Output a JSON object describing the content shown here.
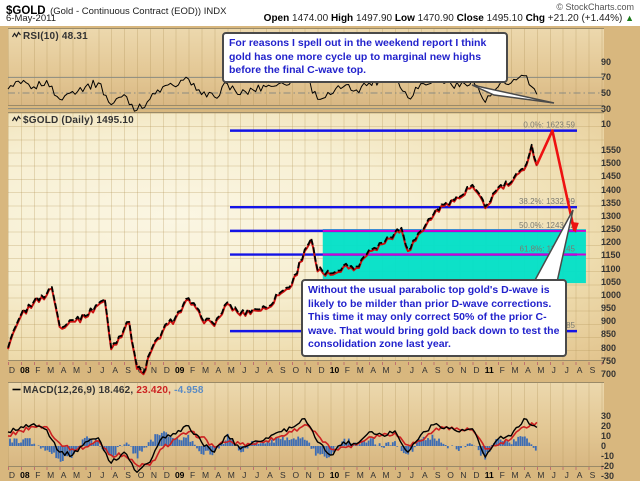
{
  "header": {
    "symbol": "$GOLD",
    "description": "(Gold - Continuous Contract (EOD)) INDX",
    "credit": "© StockCharts.com",
    "date": "6-May-2011",
    "quote": {
      "open_label": "Open",
      "open": "1474.00",
      "high_label": "High",
      "high": "1497.90",
      "low_label": "Low",
      "low": "1470.90",
      "close_label": "Close",
      "close": "1495.10",
      "chg_label": "Chg",
      "chg": "+21.20 (+1.44%)",
      "direction": "▲"
    }
  },
  "rsi_panel": {
    "label": "RSI(10) 48.31",
    "axis": [
      90,
      70,
      50,
      30,
      10
    ]
  },
  "main_panel": {
    "label": "$GOLD (Daily) 1495.10",
    "axis": [
      1550,
      1500,
      1450,
      1400,
      1350,
      1300,
      1250,
      1200,
      1150,
      1100,
      1050,
      1000,
      950,
      900,
      850,
      800,
      750,
      700
    ]
  },
  "macd_panel": {
    "label_black": "MACD(12,26,9) 18.462,",
    "label_red": "23.420,",
    "label_blue": "-4.958",
    "axis": [
      30,
      20,
      10,
      0,
      -10,
      -20,
      -30
    ]
  },
  "annotations": {
    "box1": "For reasons I spell out in the weekend report I think gold has one more cycle up to marginal new highs before the final C-wave top.",
    "box2": "Without the usual parabolic top gold's D-wave is likely to be milder than prior D-wave corrections. This time it may only correct 50% of the prior C-wave. That would bring gold back down to test the consolidation zone last year."
  },
  "colors": {
    "fib_blue": "#1414e6",
    "magenta": "#d400d4",
    "zone_cyan": "#00e0c8",
    "projection_red": "#ee1111",
    "price_black": "#000000",
    "price_red": "#cc1111",
    "macd_black": "#000000",
    "signal_red": "#cc2222",
    "histogram_blue": "#3c6cb4",
    "annotation_text": "#2222cc",
    "up_green": "#1a7a1a"
  },
  "chart_data": {
    "type": "line",
    "title": "$GOLD (Gold - Continuous Contract (EOD)) INDX - Daily",
    "x_unit": "months from Dec-2007",
    "x_axis_labels": [
      "D",
      "08",
      "F",
      "M",
      "A",
      "M",
      "J",
      "J",
      "A",
      "S",
      "O",
      "N",
      "D",
      "09",
      "F",
      "M",
      "A",
      "M",
      "J",
      "J",
      "A",
      "S",
      "O",
      "N",
      "D",
      "10",
      "F",
      "M",
      "A",
      "M",
      "J",
      "J",
      "A",
      "S",
      "O",
      "N",
      "D",
      "11",
      "F",
      "M",
      "A",
      "M",
      "J",
      "J",
      "A",
      "S"
    ],
    "bold_x_labels": [
      "08",
      "09",
      "10",
      "11"
    ],
    "price_ylim": [
      650,
      1600
    ],
    "rsi_ylim": [
      0,
      100
    ],
    "macd_ylim": [
      -35,
      35
    ],
    "fibonacci": [
      {
        "label": "0.0%: 1623.59",
        "value": 1623.59
      },
      {
        "label": "38.2%: 1332.99",
        "value": 1332.99
      },
      {
        "label": "50.0%: 1243.22",
        "value": 1243.22
      },
      {
        "label": "61.8%: 1153.45",
        "value": 1153.45
      },
      {
        "label": "100.0%: 862.85",
        "value": 862.85
      }
    ],
    "magenta_lines": [
      1243.22,
      1153.45
    ],
    "consolidation_zone": {
      "month_start": 24.4,
      "month_end": 44.8,
      "price_top": 1250,
      "price_bottom": 1045
    },
    "projection": {
      "points_month_price": [
        [
          41,
          1495
        ],
        [
          42.2,
          1623.59
        ],
        [
          43.9,
          1243
        ]
      ]
    },
    "series": [
      {
        "name": "gold_price",
        "points": [
          [
            0,
            800
          ],
          [
            1,
            925
          ],
          [
            2,
            975
          ],
          [
            3,
            1005
          ],
          [
            3.4,
            1030
          ],
          [
            4,
            885
          ],
          [
            5,
            905
          ],
          [
            6,
            920
          ],
          [
            7,
            968
          ],
          [
            7.5,
            985
          ],
          [
            8,
            800
          ],
          [
            9,
            872
          ],
          [
            9.4,
            898
          ],
          [
            10,
            725
          ],
          [
            10.5,
            705
          ],
          [
            11,
            780
          ],
          [
            12,
            868
          ],
          [
            13,
            918
          ],
          [
            14,
            988
          ],
          [
            15,
            915
          ],
          [
            16,
            888
          ],
          [
            17,
            972
          ],
          [
            18,
            928
          ],
          [
            19,
            948
          ],
          [
            20,
            952
          ],
          [
            21,
            1005
          ],
          [
            22,
            1042
          ],
          [
            23,
            1172
          ],
          [
            23.5,
            1215
          ],
          [
            24,
            1095
          ],
          [
            25,
            1082
          ],
          [
            26,
            1112
          ],
          [
            27,
            1108
          ],
          [
            28,
            1172
          ],
          [
            29,
            1198
          ],
          [
            30,
            1238
          ],
          [
            30.5,
            1255
          ],
          [
            31,
            1172
          ],
          [
            32,
            1243
          ],
          [
            33,
            1308
          ],
          [
            34,
            1352
          ],
          [
            35,
            1372
          ],
          [
            36,
            1418
          ],
          [
            37,
            1335
          ],
          [
            38,
            1408
          ],
          [
            39,
            1428
          ],
          [
            40,
            1480
          ],
          [
            40.6,
            1570
          ],
          [
            41,
            1495
          ]
        ]
      },
      {
        "name": "rsi",
        "points": [
          [
            0,
            55
          ],
          [
            1,
            62
          ],
          [
            2,
            58
          ],
          [
            3,
            66
          ],
          [
            4,
            42
          ],
          [
            5,
            52
          ],
          [
            6,
            58
          ],
          [
            7,
            63
          ],
          [
            8,
            35
          ],
          [
            9,
            48
          ],
          [
            10,
            28
          ],
          [
            11,
            42
          ],
          [
            12,
            58
          ],
          [
            13,
            58
          ],
          [
            14,
            68
          ],
          [
            15,
            48
          ],
          [
            16,
            45
          ],
          [
            17,
            62
          ],
          [
            18,
            48
          ],
          [
            19,
            54
          ],
          [
            20,
            58
          ],
          [
            21,
            62
          ],
          [
            22,
            66
          ],
          [
            23,
            74
          ],
          [
            24,
            42
          ],
          [
            25,
            48
          ],
          [
            26,
            58
          ],
          [
            27,
            54
          ],
          [
            28,
            63
          ],
          [
            29,
            67
          ],
          [
            30,
            70
          ],
          [
            31,
            44
          ],
          [
            32,
            62
          ],
          [
            33,
            68
          ],
          [
            34,
            64
          ],
          [
            35,
            58
          ],
          [
            36,
            68
          ],
          [
            37,
            38
          ],
          [
            38,
            58
          ],
          [
            39,
            63
          ],
          [
            40,
            72
          ],
          [
            41,
            48.31
          ]
        ]
      },
      {
        "name": "macd",
        "points": [
          [
            0,
            14
          ],
          [
            1,
            19
          ],
          [
            2,
            22
          ],
          [
            3,
            16
          ],
          [
            4,
            -6
          ],
          [
            5,
            -9
          ],
          [
            6,
            4
          ],
          [
            7,
            8
          ],
          [
            8,
            -17
          ],
          [
            9,
            -6
          ],
          [
            10,
            -26
          ],
          [
            11,
            -16
          ],
          [
            12,
            9
          ],
          [
            13,
            12
          ],
          [
            14,
            20
          ],
          [
            15,
            4
          ],
          [
            16,
            -6
          ],
          [
            17,
            11
          ],
          [
            18,
            -3
          ],
          [
            19,
            4
          ],
          [
            20,
            8
          ],
          [
            21,
            14
          ],
          [
            22,
            18
          ],
          [
            23,
            27
          ],
          [
            24,
            4
          ],
          [
            25,
            -9
          ],
          [
            26,
            4
          ],
          [
            27,
            2
          ],
          [
            28,
            14
          ],
          [
            29,
            11
          ],
          [
            30,
            15
          ],
          [
            31,
            -6
          ],
          [
            32,
            11
          ],
          [
            33,
            21
          ],
          [
            34,
            19
          ],
          [
            35,
            14
          ],
          [
            36,
            17
          ],
          [
            37,
            -11
          ],
          [
            38,
            7
          ],
          [
            39,
            10
          ],
          [
            40,
            27
          ],
          [
            41,
            18.462
          ]
        ]
      },
      {
        "name": "macd_signal",
        "points": [
          [
            0,
            10
          ],
          [
            1,
            15
          ],
          [
            2,
            19
          ],
          [
            3,
            19
          ],
          [
            4,
            3
          ],
          [
            5,
            -3
          ],
          [
            6,
            -1
          ],
          [
            7,
            5
          ],
          [
            8,
            -9
          ],
          [
            9,
            -9
          ],
          [
            10,
            -19
          ],
          [
            11,
            -19
          ],
          [
            12,
            -2
          ],
          [
            13,
            7
          ],
          [
            14,
            14
          ],
          [
            15,
            9
          ],
          [
            16,
            -1
          ],
          [
            17,
            4
          ],
          [
            18,
            2
          ],
          [
            19,
            2
          ],
          [
            20,
            5
          ],
          [
            21,
            9
          ],
          [
            22,
            14
          ],
          [
            23,
            21
          ],
          [
            24,
            11
          ],
          [
            25,
            -3
          ],
          [
            26,
            -1
          ],
          [
            27,
            1
          ],
          [
            28,
            9
          ],
          [
            29,
            11
          ],
          [
            30,
            13
          ],
          [
            31,
            1
          ],
          [
            32,
            5
          ],
          [
            33,
            15
          ],
          [
            34,
            19
          ],
          [
            35,
            16
          ],
          [
            36,
            16
          ],
          [
            37,
            -3
          ],
          [
            38,
            1
          ],
          [
            39,
            7
          ],
          [
            40,
            19
          ],
          [
            41,
            23.42
          ]
        ]
      }
    ],
    "rsi_reference_lines": [
      70,
      50,
      30
    ],
    "legend_position": "top-left",
    "grid": true
  }
}
